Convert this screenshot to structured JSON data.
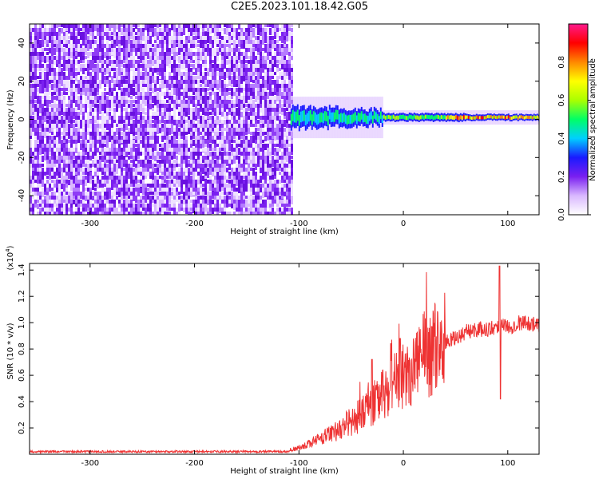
{
  "title": "C2E5.2023.101.18.42.G05",
  "colors": {
    "snr_line": "#ee3333",
    "noise": "#7a1ff0",
    "colormap": [
      "#ffffff",
      "#d9b8ff",
      "#7a1ff0",
      "#1a1aff",
      "#00cfff",
      "#00ff66",
      "#aaff00",
      "#ffff00",
      "#ff8800",
      "#ff0000",
      "#ff1a8c"
    ]
  },
  "chart_data": [
    {
      "type": "heatmap",
      "xlabel": "Height of straight line (km)",
      "ylabel": "Frequency (Hz)",
      "xlim": [
        -358,
        130
      ],
      "ylim": [
        -50,
        50
      ],
      "xticks": [
        -300,
        -200,
        -100,
        0,
        100
      ],
      "xtick_labels": [
        "-300",
        "-200",
        "-100",
        "0",
        "100"
      ],
      "yticks": [
        -40,
        -20,
        0,
        20,
        40
      ],
      "ytick_labels": [
        "-40",
        "-20",
        "0",
        "20",
        "40"
      ],
      "noise_region_x": [
        -358,
        -107
      ],
      "signal_band_x": [
        -108,
        130
      ],
      "signal_band_freq_hz": 1,
      "colorbar": {
        "label": "Normalized spectral amplitude",
        "range": [
          0,
          1
        ],
        "ticks": [
          0.0,
          0.2,
          0.4,
          0.6,
          0.8
        ],
        "tick_labels": [
          "0.0",
          "0.2",
          "0.4",
          "0.6",
          "0.8"
        ]
      }
    },
    {
      "type": "line",
      "xlabel": "Height of straight line (km)",
      "ylabel": "SNR (10 * v/v)",
      "yscale_label": "(x10",
      "yscale_exp": "4",
      "yscale_close": ")",
      "xlim": [
        -358,
        130
      ],
      "ylim": [
        0,
        1.45
      ],
      "xticks": [
        -300,
        -200,
        -100,
        0,
        100
      ],
      "xtick_labels": [
        "-300",
        "-200",
        "-100",
        "0",
        "100"
      ],
      "yticks": [
        0.2,
        0.4,
        0.6,
        0.8,
        1.0,
        1.2,
        1.4
      ],
      "ytick_labels": [
        "0.2",
        "0.4",
        "0.6",
        "0.8",
        "1.0",
        "1.2",
        "1.4"
      ],
      "series": [
        {
          "x": [
            -358,
            -300,
            -200,
            -110,
            -100,
            -90,
            -80,
            -70,
            -60,
            -50,
            -40,
            -30,
            -20,
            -10,
            0,
            10,
            20,
            30,
            40,
            50,
            60,
            70,
            80,
            90,
            95,
            100,
            110,
            120,
            130
          ],
          "y": [
            0.02,
            0.02,
            0.02,
            0.02,
            0.05,
            0.08,
            0.12,
            0.15,
            0.2,
            0.25,
            0.3,
            0.38,
            0.45,
            0.52,
            0.6,
            0.68,
            0.75,
            0.8,
            0.85,
            0.88,
            0.93,
            0.95,
            0.95,
            0.97,
            1.0,
            0.96,
            1.0,
            1.0,
            0.97
          ],
          "spikes": [
            {
              "x": 92,
              "y": 1.43
            },
            {
              "x": 93,
              "y": 0.42
            },
            {
              "x": -12,
              "y": 0.84
            },
            {
              "x": -3,
              "y": 0.88
            },
            {
              "x": -30,
              "y": 0.72
            }
          ]
        }
      ]
    }
  ]
}
